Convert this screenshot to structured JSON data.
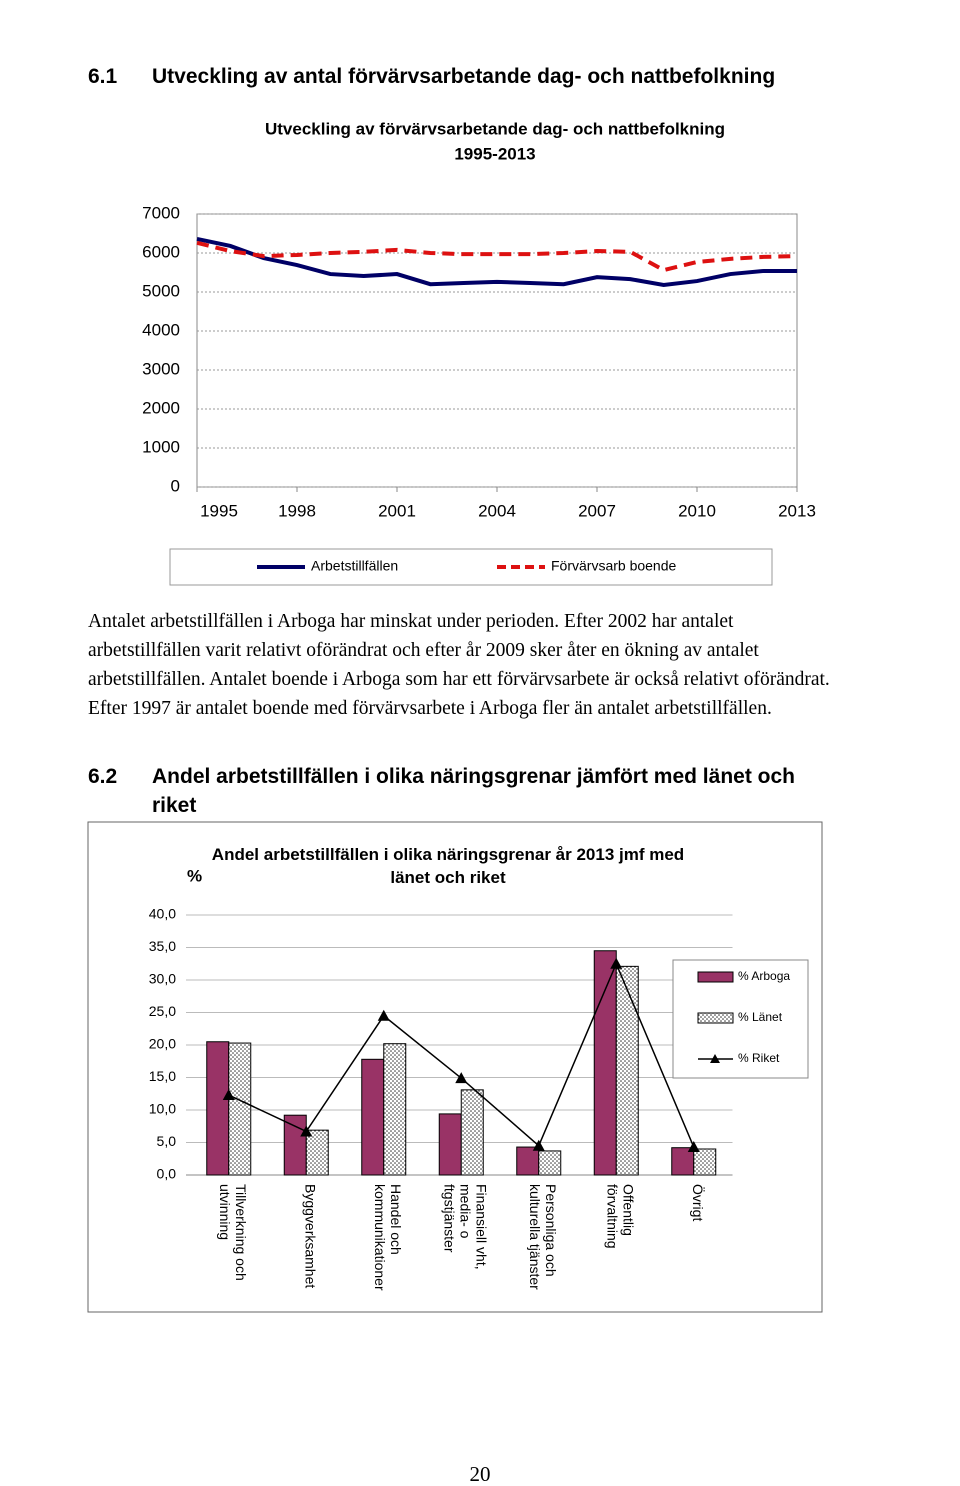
{
  "sections": [
    {
      "number": "6.1",
      "title": "Utveckling av antal förvärvsarbetande dag- och nattbefolkning"
    },
    {
      "number": "6.2",
      "title": "Andel arbetstillfällen i olika näringsgrenar jämfört med länet och riket"
    }
  ],
  "paragraph": "Antalet arbetstillfällen i Arboga har minskat under perioden. Efter 2002 har antalet arbetstillfällen varit relativt oförändrat och efter år 2009 sker åter en ökning av antalet arbetstillfällen. Antalet boende i Arboga som har ett förvärvsarbete är också relativt oförändrat. Efter 1997 är antalet boende med förvärvsarbete i Arboga fler än antalet arbetstillfällen.",
  "page_number": 20,
  "chart_data": [
    {
      "type": "line",
      "title": "Utveckling av förvärvsarbetande dag- och nattbefolkning",
      "subtitle": "1995-2013",
      "x": [
        1995,
        1996,
        1997,
        1998,
        1999,
        2000,
        2001,
        2002,
        2003,
        2004,
        2005,
        2006,
        2007,
        2008,
        2009,
        2010,
        2011,
        2012,
        2013
      ],
      "xlim": [
        1995,
        2013
      ],
      "xticks": [
        1995,
        1998,
        2001,
        2004,
        2007,
        2010,
        2013
      ],
      "ylim": [
        0,
        7000
      ],
      "yticks": [
        0,
        1000,
        2000,
        3000,
        4000,
        5000,
        6000,
        7000
      ],
      "grid": true,
      "legend": "bottom",
      "series": [
        {
          "name": "Arbetstillfällen",
          "color": "#000066",
          "values": [
            6360,
            6180,
            5870,
            5690,
            5460,
            5410,
            5460,
            5200,
            5230,
            5260,
            5230,
            5200,
            5380,
            5330,
            5180,
            5280,
            5460,
            5540,
            5540
          ]
        },
        {
          "name": "Förvärvsarb boende",
          "color": "#dd1111",
          "dashed": true,
          "values": [
            6260,
            6050,
            5920,
            5950,
            6000,
            6030,
            6080,
            6000,
            5970,
            5970,
            5970,
            6000,
            6050,
            6030,
            5560,
            5770,
            5850,
            5900,
            5920
          ]
        }
      ]
    },
    {
      "type": "bar",
      "title": "Andel arbetstillfällen i olika näringsgrenar år 2013 jmf med\nlänet och riket",
      "ylabel": "%",
      "categories": [
        "Tillverkning och\nutvinning",
        "Byggverksamhet",
        "Handel och\nkommunikationer",
        "Finansiell vht,\nmedia- o\nftgstjänster",
        "Personliga och\nkulturella tjänster",
        "Offentlig\nförvaltning",
        "Övrigt"
      ],
      "ylim": [
        0,
        40
      ],
      "yticks": [
        {
          "value": 0,
          "label": "0,0"
        },
        {
          "value": 5,
          "label": "5,0"
        },
        {
          "value": 10,
          "label": "10,0"
        },
        {
          "value": 15,
          "label": "15,0"
        },
        {
          "value": 20,
          "label": "20,0"
        },
        {
          "value": 25,
          "label": "25,0"
        },
        {
          "value": 30,
          "label": "30,0"
        },
        {
          "value": 35,
          "label": "35,0"
        },
        {
          "value": 40,
          "label": "40,0"
        }
      ],
      "grid": true,
      "legend": "right",
      "series": [
        {
          "name": "% Arboga",
          "color": "#993366",
          "values": [
            20.5,
            9.2,
            17.8,
            9.4,
            4.3,
            34.5,
            4.2
          ]
        },
        {
          "name": "% Länet",
          "color": "#ffffff",
          "pattern": "dotted",
          "values": [
            20.3,
            6.9,
            20.2,
            13.1,
            3.7,
            32.1,
            4.0
          ]
        },
        {
          "name": "% Riket",
          "color": "#000000",
          "type": "line",
          "values": [
            12.3,
            6.7,
            24.5,
            14.9,
            4.5,
            32.5,
            4.3
          ]
        }
      ]
    }
  ]
}
